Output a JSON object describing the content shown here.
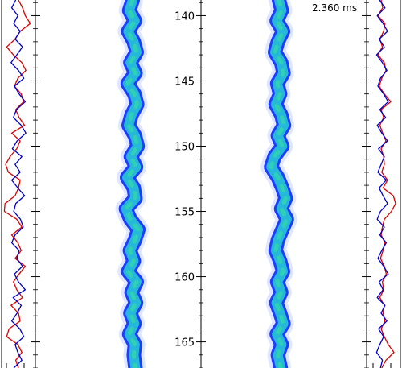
{
  "chart_data": {
    "type": "line",
    "title": "",
    "xlabel": "",
    "ylabel": "",
    "time_label": "2.360 ms",
    "y_range": [
      138.8,
      167
    ],
    "y_ticks": [
      140,
      145,
      150,
      155,
      160,
      165
    ],
    "grid": false,
    "legend": "none",
    "panels": [
      {
        "name": "left profile panel",
        "series": [
          {
            "color": "#0000cc",
            "y": [
              138.8,
              139.4,
              140.0,
              140.6,
              141.2,
              141.8,
              142.4,
              143.0,
              143.6,
              144.2,
              144.8,
              145.4,
              146.0,
              146.6,
              147.2,
              147.8,
              148.4,
              149.0,
              149.6,
              150.2,
              150.8,
              151.4,
              152.0,
              152.6,
              153.2,
              153.8,
              154.4,
              155.0,
              155.6,
              156.2,
              156.8,
              157.4,
              158.0,
              158.6,
              159.2,
              159.8,
              160.4,
              161.0,
              161.6,
              162.2,
              162.8,
              163.4,
              164.0,
              164.6,
              165.2,
              165.8,
              166.4,
              167.0
            ],
            "x": [
              0.42,
              0.3,
              0.48,
              0.36,
              0.55,
              0.4,
              0.62,
              0.45,
              0.28,
              0.5,
              0.66,
              0.38,
              0.52,
              0.7,
              0.44,
              0.35,
              0.58,
              0.72,
              0.46,
              0.32,
              0.6,
              0.4,
              0.55,
              0.3,
              0.48,
              0.68,
              0.42,
              0.36,
              0.56,
              0.64,
              0.4,
              0.3,
              0.52,
              0.45,
              0.62,
              0.38,
              0.5,
              0.7,
              0.34,
              0.58,
              0.46,
              0.3,
              0.54,
              0.66,
              0.4,
              0.48,
              0.6,
              0.36
            ]
          },
          {
            "color": "#dd0000",
            "y": [
              138.8,
              139.4,
              140.0,
              140.6,
              141.2,
              141.8,
              142.4,
              143.0,
              143.6,
              144.2,
              144.8,
              145.4,
              146.0,
              146.6,
              147.2,
              147.8,
              148.4,
              149.0,
              149.6,
              150.2,
              150.8,
              151.4,
              152.0,
              152.6,
              153.2,
              153.8,
              154.4,
              155.0,
              155.6,
              156.2,
              156.8,
              157.4,
              158.0,
              158.6,
              159.2,
              159.8,
              160.4,
              161.0,
              161.6,
              162.2,
              162.8,
              163.4,
              164.0,
              164.6,
              165.2,
              165.8,
              166.4,
              167.0
            ],
            "x": [
              0.5,
              0.62,
              0.7,
              0.85,
              0.55,
              0.4,
              0.15,
              0.35,
              0.6,
              0.72,
              0.48,
              0.38,
              0.58,
              0.65,
              0.42,
              0.52,
              0.68,
              0.3,
              0.55,
              0.45,
              0.25,
              0.12,
              0.2,
              0.55,
              0.5,
              0.4,
              0.1,
              0.08,
              0.45,
              0.6,
              0.3,
              0.48,
              0.58,
              0.4,
              0.7,
              0.52,
              0.35,
              0.45,
              0.62,
              0.28,
              0.5,
              0.55,
              0.22,
              0.15,
              0.48,
              0.6,
              0.42,
              0.5
            ]
          }
        ]
      },
      {
        "name": "right profile panel",
        "series": [
          {
            "color": "#0000cc",
            "y": [
              138.8,
              139.4,
              140.0,
              140.6,
              141.2,
              141.8,
              142.4,
              143.0,
              143.6,
              144.2,
              144.8,
              145.4,
              146.0,
              146.6,
              147.2,
              147.8,
              148.4,
              149.0,
              149.6,
              150.2,
              150.8,
              151.4,
              152.0,
              152.6,
              153.2,
              153.8,
              154.4,
              155.0,
              155.6,
              156.2,
              156.8,
              157.4,
              158.0,
              158.6,
              159.2,
              159.8,
              160.4,
              161.0,
              161.6,
              162.2,
              162.8,
              163.4,
              164.0,
              164.6,
              165.2,
              165.8,
              166.4,
              167.0
            ],
            "x": [
              0.35,
              0.52,
              0.28,
              0.46,
              0.6,
              0.34,
              0.5,
              0.26,
              0.44,
              0.58,
              0.38,
              0.3,
              0.48,
              0.62,
              0.36,
              0.54,
              0.28,
              0.42,
              0.6,
              0.32,
              0.5,
              0.4,
              0.3,
              0.56,
              0.34,
              0.46,
              0.6,
              0.38,
              0.28,
              0.5,
              0.36,
              0.56,
              0.42,
              0.3,
              0.48,
              0.62,
              0.34,
              0.46,
              0.28,
              0.52,
              0.4,
              0.58,
              0.32,
              0.48,
              0.36,
              0.26,
              0.44,
              0.38
            ]
          },
          {
            "color": "#dd0000",
            "y": [
              138.8,
              139.4,
              140.0,
              140.6,
              141.2,
              141.8,
              142.4,
              143.0,
              143.6,
              144.2,
              144.8,
              145.4,
              146.0,
              146.6,
              147.2,
              147.8,
              148.4,
              149.0,
              149.6,
              150.2,
              150.8,
              151.4,
              152.0,
              152.6,
              153.2,
              153.8,
              154.4,
              155.0,
              155.6,
              156.2,
              156.8,
              157.4,
              158.0,
              158.6,
              159.2,
              159.8,
              160.4,
              161.0,
              161.6,
              162.2,
              162.8,
              163.4,
              164.0,
              164.6,
              165.2,
              165.8,
              166.4,
              167.0
            ],
            "x": [
              0.4,
              0.45,
              0.3,
              0.52,
              0.48,
              0.36,
              0.44,
              0.3,
              0.5,
              0.55,
              0.42,
              0.34,
              0.5,
              0.7,
              0.4,
              0.48,
              0.36,
              0.45,
              0.55,
              0.4,
              0.48,
              0.5,
              0.42,
              0.6,
              0.46,
              0.78,
              0.85,
              0.72,
              0.5,
              0.44,
              0.4,
              0.52,
              0.46,
              0.38,
              0.5,
              0.56,
              0.44,
              0.48,
              0.36,
              0.5,
              0.46,
              0.52,
              0.4,
              0.5,
              0.62,
              0.8,
              0.55,
              0.42
            ]
          }
        ]
      }
    ],
    "fronts": [
      {
        "name": "left front",
        "y": [
          138.8,
          139.6,
          140.4,
          141.2,
          142.0,
          142.8,
          143.6,
          144.4,
          145.2,
          146.0,
          146.8,
          147.6,
          148.4,
          149.2,
          150.0,
          150.8,
          151.6,
          152.4,
          153.2,
          154.0,
          154.8,
          155.6,
          156.4,
          157.2,
          158.0,
          158.8,
          159.6,
          160.4,
          161.2,
          162.0,
          162.8,
          163.6,
          164.4,
          165.2,
          166.0,
          167.0
        ],
        "x": [
          0.0,
          -0.15,
          0.1,
          -0.2,
          0.05,
          0.18,
          -0.1,
          0.12,
          -0.22,
          0.08,
          0.2,
          -0.05,
          -0.18,
          0.1,
          0.22,
          -0.08,
          0.15,
          -0.25,
          0.05,
          0.12,
          -0.3,
          -0.1,
          0.25,
          0.1,
          -0.12,
          0.05,
          -0.2,
          0.18,
          -0.05,
          0.15,
          -0.1,
          0.08,
          -0.15,
          0.1,
          0.05,
          0.12
        ]
      },
      {
        "name": "right front",
        "y": [
          138.8,
          139.6,
          140.4,
          141.2,
          142.0,
          142.8,
          143.6,
          144.4,
          145.2,
          146.0,
          146.8,
          147.6,
          148.4,
          149.2,
          150.0,
          150.8,
          151.6,
          152.4,
          153.2,
          154.0,
          154.8,
          155.6,
          156.4,
          157.2,
          158.0,
          158.8,
          159.6,
          160.4,
          161.2,
          162.0,
          162.8,
          163.6,
          164.4,
          165.2,
          166.0,
          167.0
        ],
        "x": [
          0.0,
          0.12,
          -0.1,
          0.18,
          -0.05,
          -0.18,
          0.1,
          0.2,
          -0.08,
          0.05,
          -0.15,
          0.1,
          0.22,
          -0.05,
          0.15,
          -0.2,
          -0.35,
          -0.05,
          0.15,
          0.3,
          0.1,
          0.35,
          0.15,
          -0.05,
          -0.15,
          0.05,
          0.18,
          -0.08,
          0.1,
          -0.12,
          0.05,
          0.2,
          -0.1,
          0.12,
          -0.05,
          0.08
        ]
      }
    ]
  }
}
